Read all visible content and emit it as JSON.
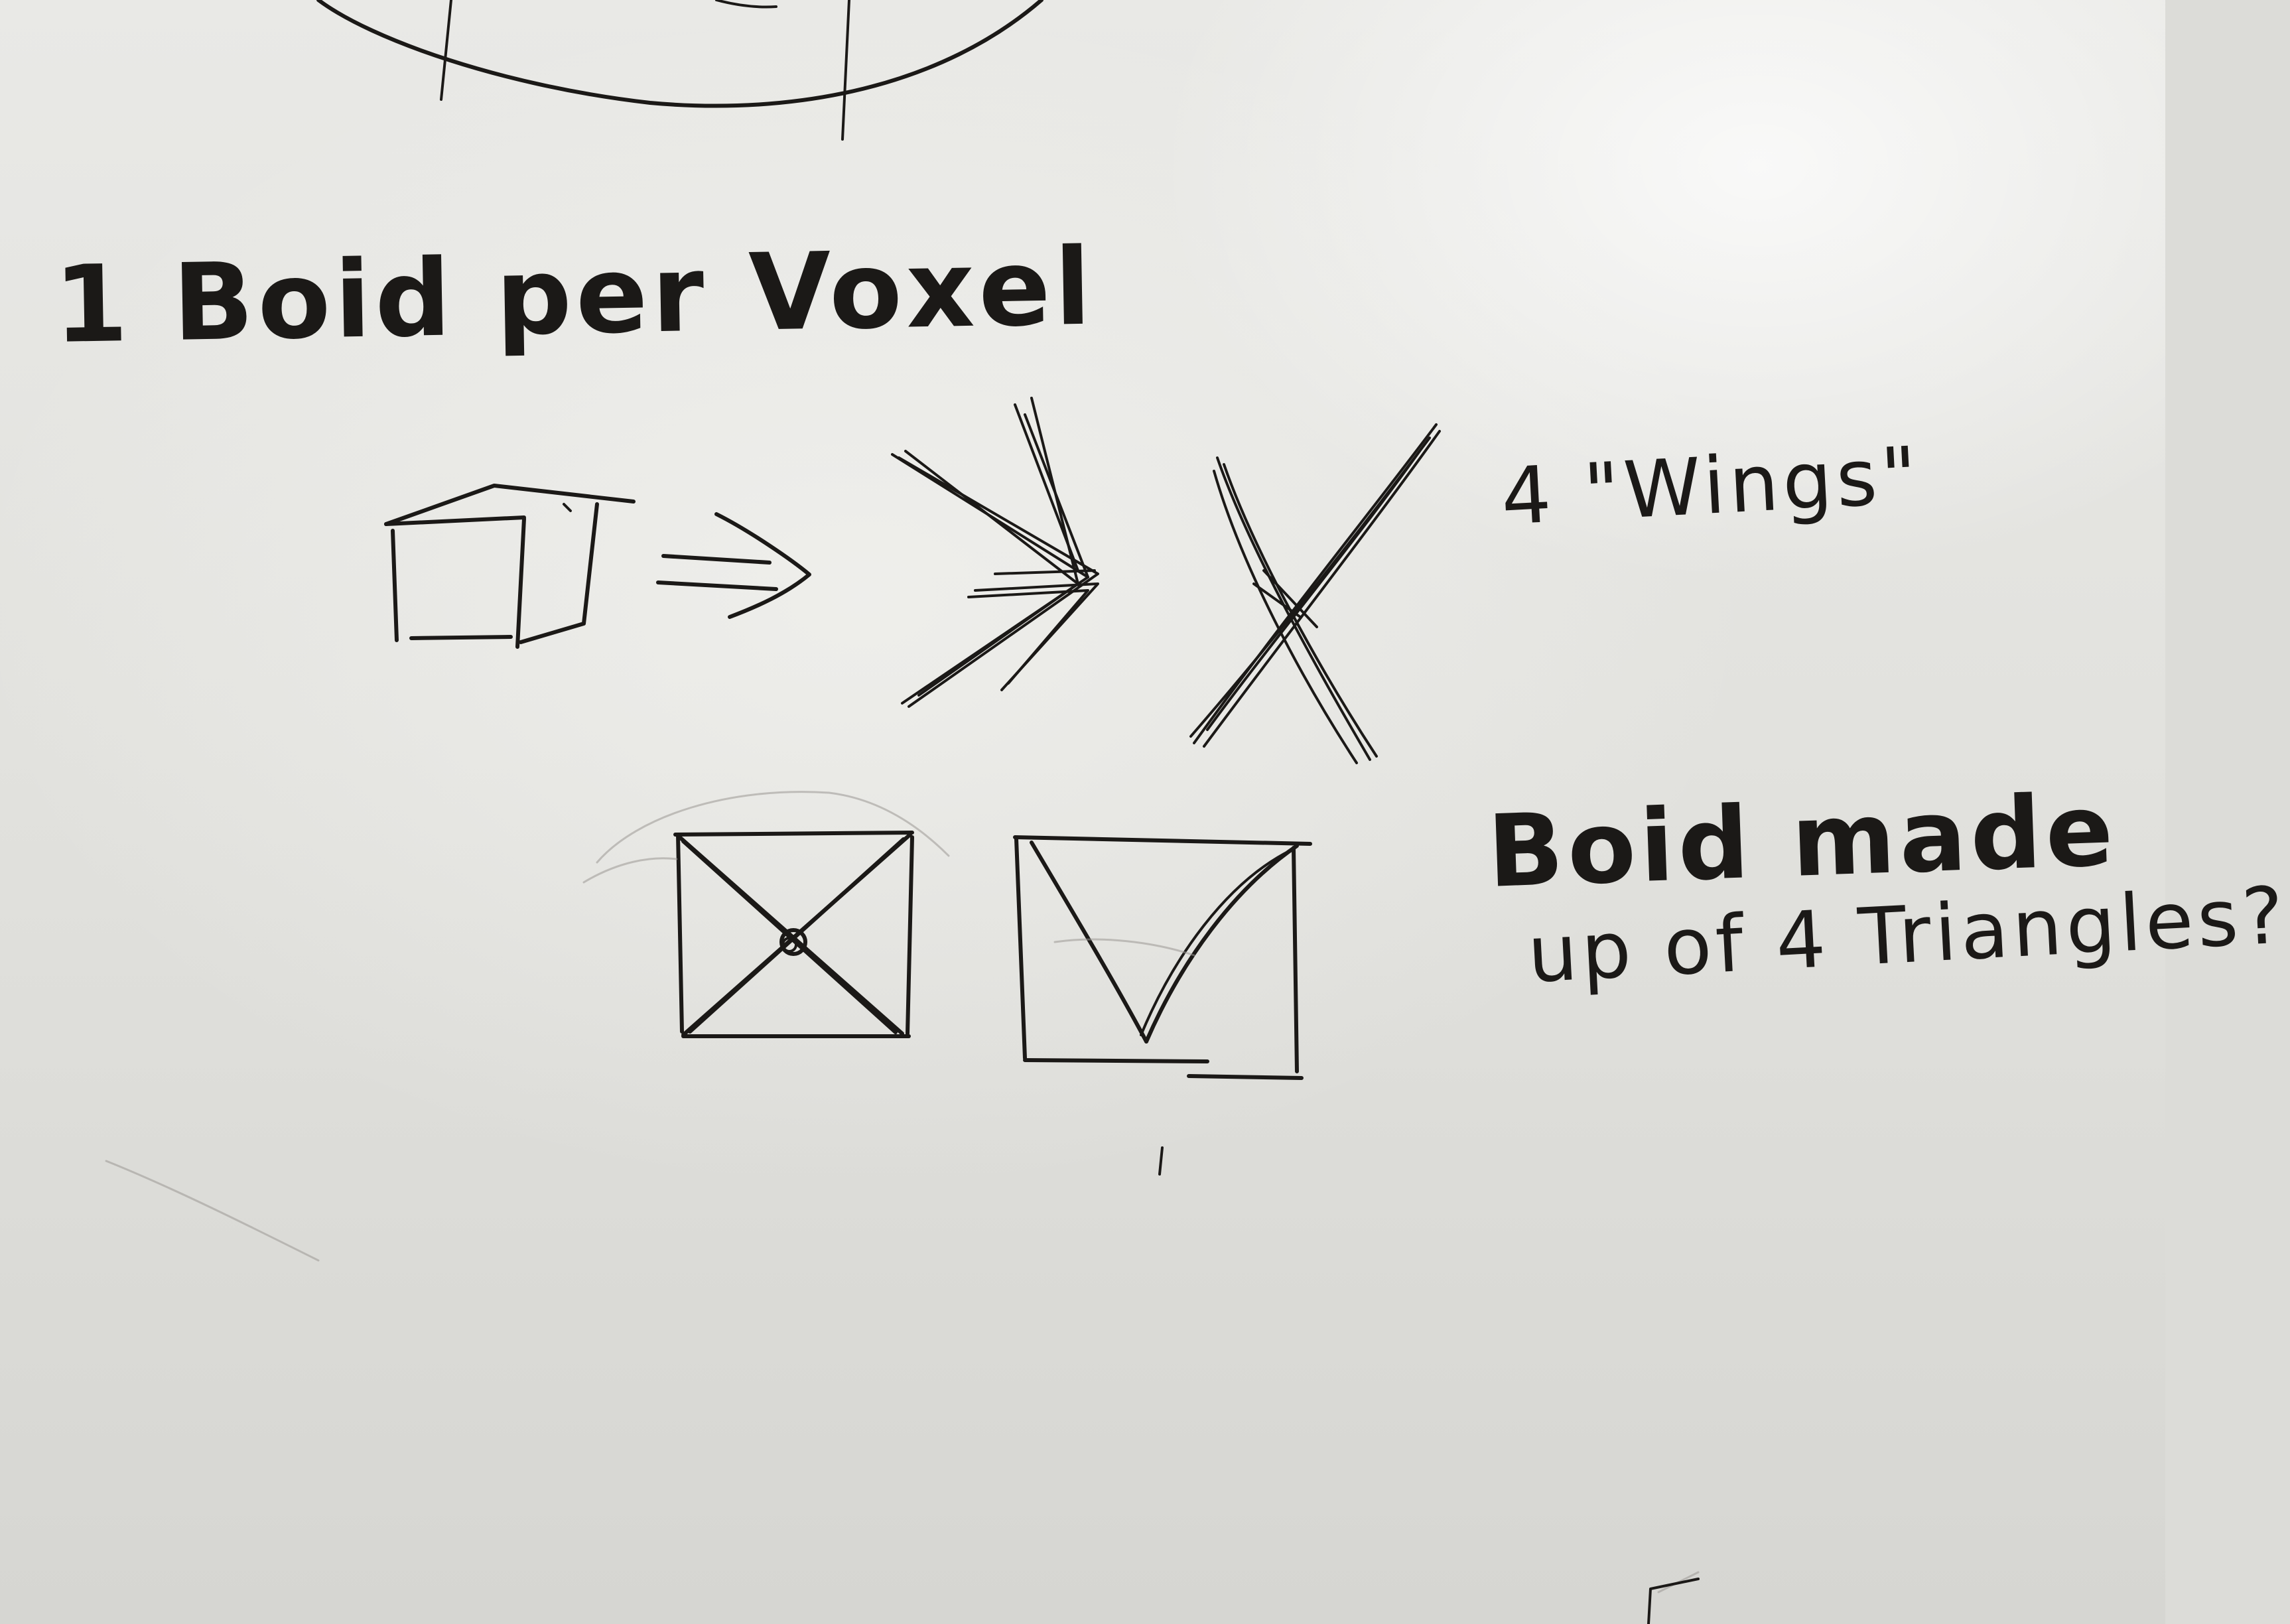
{
  "whiteboard": {
    "background_color": "#e4e4e0",
    "ink_color": "#1b1917",
    "heading": "1 Boid per Voxel",
    "wings_note": "4 \"Wings\"",
    "triangles_note_line1": "Boid made",
    "triangles_note_line2": "up of 4 Triangles?",
    "sketches": [
      "partial-circle",
      "cube",
      "double-arrow",
      "arrowhead-boid",
      "x-shaped-boid",
      "box-with-x",
      "box-with-v"
    ]
  }
}
